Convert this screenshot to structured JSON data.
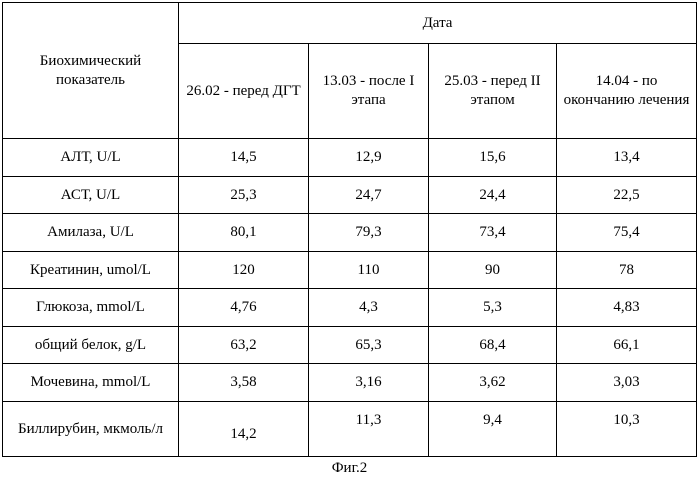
{
  "header": {
    "indicator_label": "Биохимический показатель",
    "date_label": "Дата",
    "dates": [
      "26.02 - перед ДГТ",
      "13.03 - после I этапа",
      "25.03 - перед II этапом",
      "14.04 - по окончанию лечения"
    ]
  },
  "rows": [
    {
      "name": "АЛТ,  U/L",
      "values": [
        "14,5",
        "12,9",
        "15,6",
        "13,4"
      ]
    },
    {
      "name": "АСТ, U/L",
      "values": [
        "25,3",
        "24,7",
        "24,4",
        "22,5"
      ]
    },
    {
      "name": "Амилаза, U/L",
      "values": [
        "80,1",
        "79,3",
        "73,4",
        "75,4"
      ]
    },
    {
      "name": "Креатинин, umol/L",
      "values": [
        "120",
        "110",
        "90",
        "78"
      ]
    },
    {
      "name": "Глюкоза, mmol/L",
      "values": [
        "4,76",
        "4,3",
        "5,3",
        "4,83"
      ]
    },
    {
      "name": "общий белок, g/L",
      "values": [
        "63,2",
        "65,3",
        "68,4",
        "66,1"
      ]
    },
    {
      "name": "Мочевина, mmol/L",
      "values": [
        "3,58",
        "3,16",
        "3,62",
        "3,03"
      ]
    },
    {
      "name": "Биллирубин, мкмоль/л",
      "values": [
        "14,2",
        "11,3",
        "9,4",
        "10,3"
      ]
    }
  ],
  "caption": "Фиг.2"
}
